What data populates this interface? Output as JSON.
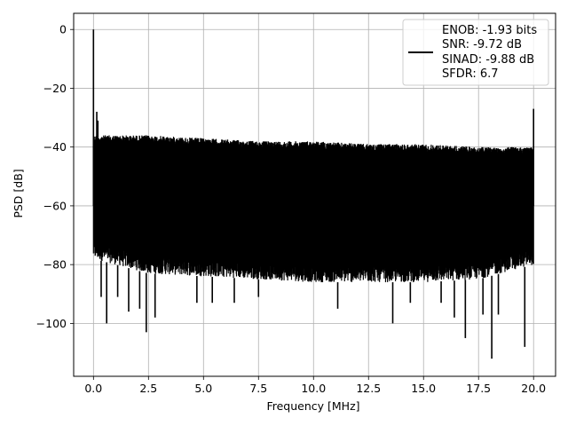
{
  "chart_data": {
    "type": "line",
    "xlabel": "Frequency [MHz]",
    "ylabel": "PSD [dB]",
    "xlim": [
      -0.9,
      21.0
    ],
    "ylim": [
      -118,
      5.5
    ],
    "x_ticks": [
      0.0,
      2.5,
      5.0,
      7.5,
      10.0,
      12.5,
      15.0,
      17.5,
      20.0
    ],
    "x_tick_labels": [
      "0.0",
      "2.5",
      "5.0",
      "7.5",
      "10.0",
      "12.5",
      "15.0",
      "17.5",
      "20.0"
    ],
    "y_ticks": [
      0,
      -20,
      -40,
      -60,
      -80,
      -100
    ],
    "y_tick_labels": [
      "0",
      "−20",
      "−40",
      "−60",
      "−80",
      "−100"
    ],
    "grid": true,
    "legend_position": "top-right",
    "legend_entries": [
      "ENOB: -1.93 bits",
      "SNR: -9.72 dB",
      "SINAD: -9.88 dB",
      "SFDR: 6.7"
    ],
    "series_color": "#000000",
    "x_range": [
      0.0,
      20.0
    ],
    "noise_floor_points": [
      {
        "x": 0.0,
        "top": -36,
        "bottom": -78
      },
      {
        "x": 2.5,
        "top": -36,
        "bottom": -83
      },
      {
        "x": 5.0,
        "top": -37,
        "bottom": -84
      },
      {
        "x": 7.5,
        "top": -38,
        "bottom": -85
      },
      {
        "x": 10.0,
        "top": -38,
        "bottom": -86
      },
      {
        "x": 12.5,
        "top": -39,
        "bottom": -86
      },
      {
        "x": 15.0,
        "top": -39,
        "bottom": -86
      },
      {
        "x": 17.5,
        "top": -40,
        "bottom": -85
      },
      {
        "x": 20.0,
        "top": -40,
        "bottom": -80
      }
    ],
    "peaks": [
      {
        "x": 0.0,
        "y": 0
      },
      {
        "x": 0.15,
        "y": -28
      },
      {
        "x": 0.2,
        "y": -31
      },
      {
        "x": 20.0,
        "y": -27
      }
    ],
    "deep_dips": [
      {
        "x": 0.35,
        "y": -91
      },
      {
        "x": 0.6,
        "y": -100
      },
      {
        "x": 1.1,
        "y": -91
      },
      {
        "x": 1.6,
        "y": -96
      },
      {
        "x": 2.1,
        "y": -95
      },
      {
        "x": 2.4,
        "y": -103
      },
      {
        "x": 2.8,
        "y": -98
      },
      {
        "x": 4.7,
        "y": -93
      },
      {
        "x": 5.4,
        "y": -93
      },
      {
        "x": 6.4,
        "y": -93
      },
      {
        "x": 7.5,
        "y": -91
      },
      {
        "x": 11.1,
        "y": -95
      },
      {
        "x": 13.6,
        "y": -100
      },
      {
        "x": 14.4,
        "y": -93
      },
      {
        "x": 15.8,
        "y": -93
      },
      {
        "x": 16.4,
        "y": -98
      },
      {
        "x": 16.9,
        "y": -105
      },
      {
        "x": 17.7,
        "y": -97
      },
      {
        "x": 18.1,
        "y": -112
      },
      {
        "x": 18.4,
        "y": -97
      },
      {
        "x": 19.6,
        "y": -108
      }
    ]
  }
}
